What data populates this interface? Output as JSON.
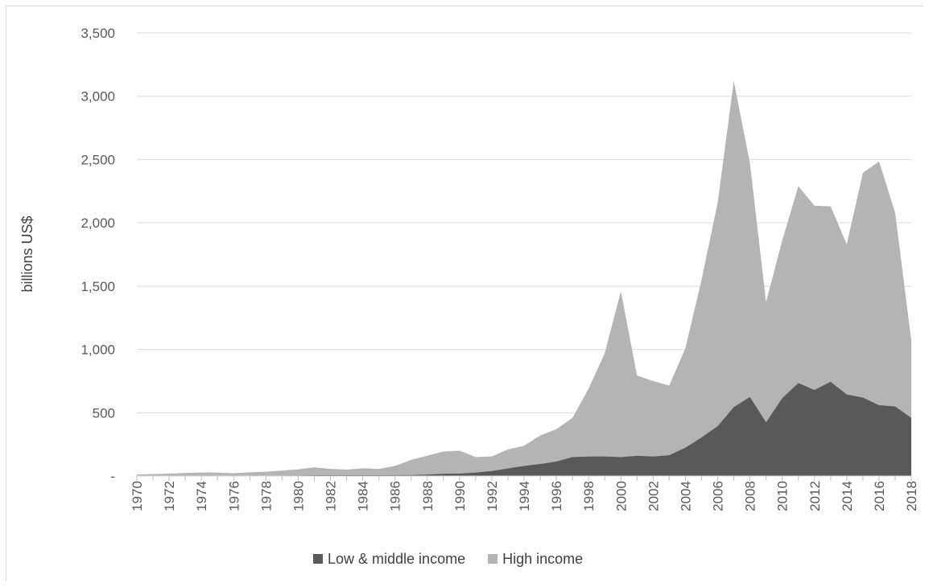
{
  "chart_data": {
    "type": "area",
    "stacked": true,
    "ylabel": "billions US$",
    "xlabel": "",
    "title": "",
    "ylim": [
      0,
      3500
    ],
    "yticks": [
      0,
      500,
      1000,
      1500,
      2000,
      2500,
      3000,
      3500
    ],
    "ytick_labels": [
      "-",
      "500",
      "1,000",
      "1,500",
      "2,000",
      "2,500",
      "3,000",
      "3,500"
    ],
    "x_tick_labels": [
      "1970",
      "1972",
      "1974",
      "1976",
      "1978",
      "1980",
      "1982",
      "1984",
      "1986",
      "1988",
      "1990",
      "1992",
      "1994",
      "1996",
      "1998",
      "2000",
      "2002",
      "2004",
      "2006",
      "2008",
      "2010",
      "2012",
      "2014",
      "2016",
      "2018"
    ],
    "grid": true,
    "legend_position": "bottom",
    "x": [
      1970,
      1971,
      1972,
      1973,
      1974,
      1975,
      1976,
      1977,
      1978,
      1979,
      1980,
      1981,
      1982,
      1983,
      1984,
      1985,
      1986,
      1987,
      1988,
      1989,
      1990,
      1991,
      1992,
      1993,
      1994,
      1995,
      1996,
      1997,
      1998,
      1999,
      2000,
      2001,
      2002,
      2003,
      2004,
      2005,
      2006,
      2007,
      2008,
      2009,
      2010,
      2011,
      2012,
      2013,
      2014,
      2015,
      2016,
      2017,
      2018
    ],
    "series": [
      {
        "name": "Low & middle income",
        "color": "#595959",
        "values": [
          1,
          1,
          1,
          2,
          2,
          2,
          2,
          3,
          3,
          4,
          5,
          6,
          6,
          6,
          6,
          6,
          7,
          8,
          12,
          18,
          20,
          28,
          40,
          60,
          80,
          95,
          115,
          150,
          155,
          155,
          150,
          160,
          155,
          165,
          225,
          305,
          395,
          545,
          625,
          425,
          615,
          735,
          680,
          745,
          645,
          620,
          560,
          550,
          460
        ]
      },
      {
        "name": "High income",
        "color": "#b4b4b4",
        "values": [
          12,
          15,
          18,
          22,
          26,
          26,
          20,
          26,
          31,
          39,
          48,
          62,
          50,
          45,
          55,
          50,
          73,
          120,
          148,
          176,
          180,
          122,
          115,
          150,
          160,
          225,
          255,
          310,
          535,
          815,
          1310,
          635,
          595,
          550,
          785,
          1245,
          1765,
          2575,
          1845,
          950,
          1245,
          1555,
          1455,
          1385,
          1185,
          1775,
          1925,
          1530,
          610
        ]
      }
    ]
  }
}
